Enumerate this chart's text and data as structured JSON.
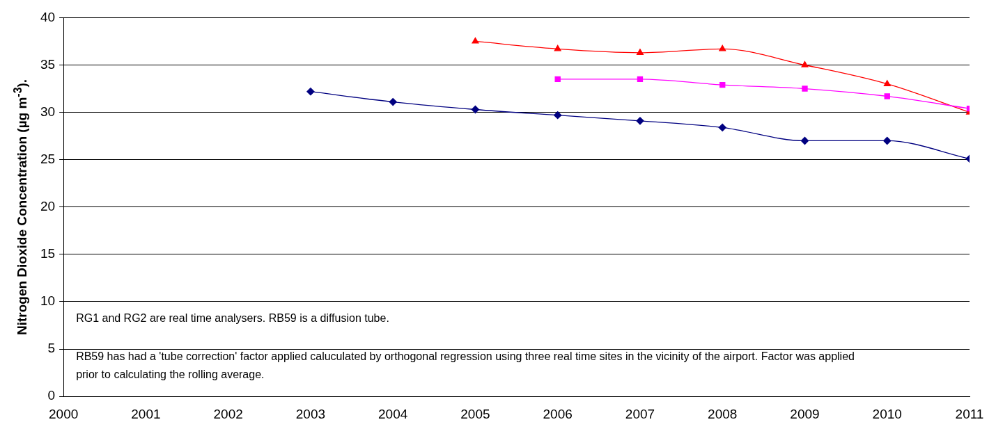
{
  "chart_data": {
    "type": "line",
    "ylabel": "Nitrogen Dioxide Concentration (µg m$^{-3}$).",
    "xlim": [
      2000,
      2011
    ],
    "xticks": [
      2000,
      2001,
      2002,
      2003,
      2004,
      2005,
      2006,
      2007,
      2008,
      2009,
      2010,
      2011
    ],
    "ylim": [
      0,
      40
    ],
    "yticks": [
      0,
      5,
      10,
      15,
      20,
      25,
      30,
      35,
      40
    ],
    "grid": "y",
    "legend": false,
    "line_style": "solid",
    "series": [
      {
        "color": "#000080",
        "marker": "diamond",
        "x": [
          2003,
          2004,
          2005,
          2006,
          2007,
          2008,
          2009,
          2010,
          2011
        ],
        "values": [
          32.2,
          31.1,
          30.3,
          29.7,
          29.1,
          28.4,
          27.0,
          27.0,
          25.1
        ]
      },
      {
        "color": "#ff00ff",
        "marker": "square",
        "x": [
          2006,
          2007,
          2008,
          2009,
          2010,
          2011
        ],
        "values": [
          33.5,
          33.5,
          32.9,
          32.5,
          31.7,
          30.4
        ]
      },
      {
        "color": "#ff0000",
        "marker": "triangle",
        "x": [
          2005,
          2006,
          2007,
          2008,
          2009,
          2010,
          2011
        ],
        "values": [
          37.5,
          36.7,
          36.3,
          36.7,
          35.0,
          33.0,
          30.0
        ]
      }
    ],
    "annotations": [
      "RG1 and RG2 are real time analysers. RB59 is a diffusion tube.",
      "RB59 has had a 'tube correction' factor applied caluculated by orthogonal regression using three real time sites in the vicinity of the airport. Factor was applied prior to calculating the rolling average."
    ]
  }
}
